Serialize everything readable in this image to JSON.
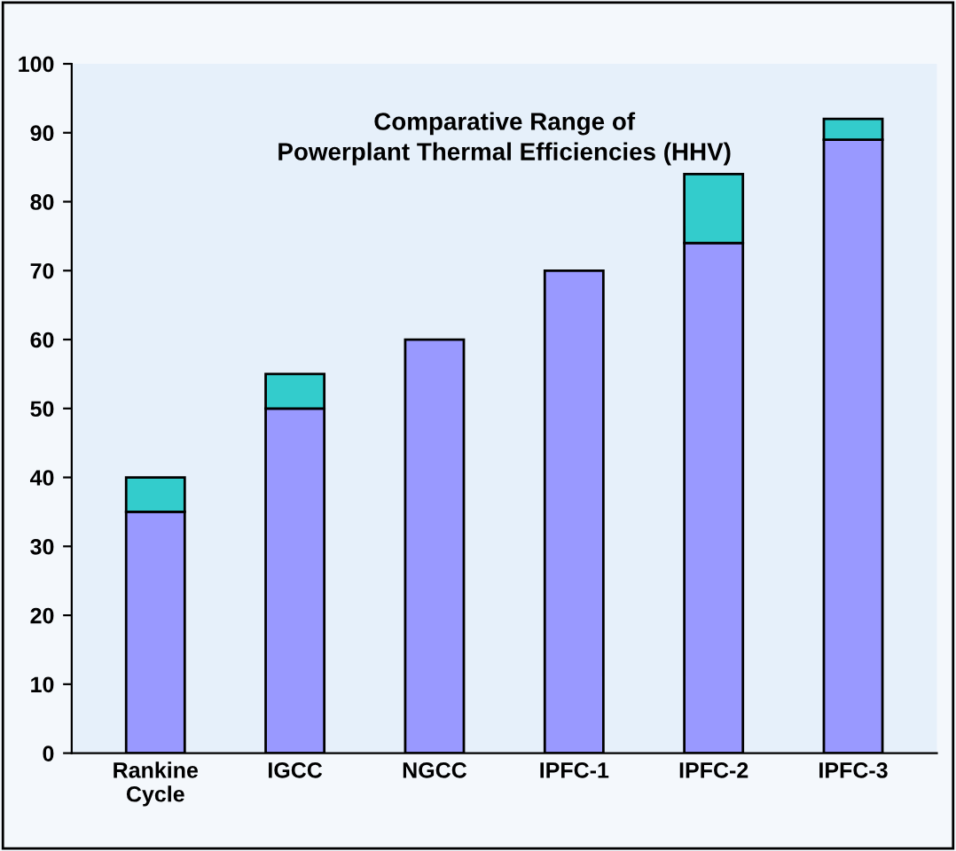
{
  "chart_data": {
    "type": "bar",
    "title": "Comparative Range of\nPowerplant Thermal Efficiencies (HHV)",
    "categories": [
      "Rankine\nCycle",
      "IGCC",
      "NGCC",
      "IPFC-1",
      "IPFC-2",
      "IPFC-3"
    ],
    "stacked": true,
    "series": [
      {
        "color": "#9999ff",
        "values": [
          35,
          50,
          60,
          70,
          74,
          89
        ]
      },
      {
        "color": "#33cccc",
        "values": [
          5,
          5,
          null,
          null,
          10,
          3
        ]
      }
    ],
    "ylim": [
      0,
      100
    ],
    "yticks": [
      0,
      10,
      20,
      30,
      40,
      50,
      60,
      70,
      80,
      90,
      100
    ],
    "grid": false,
    "legend": false
  }
}
